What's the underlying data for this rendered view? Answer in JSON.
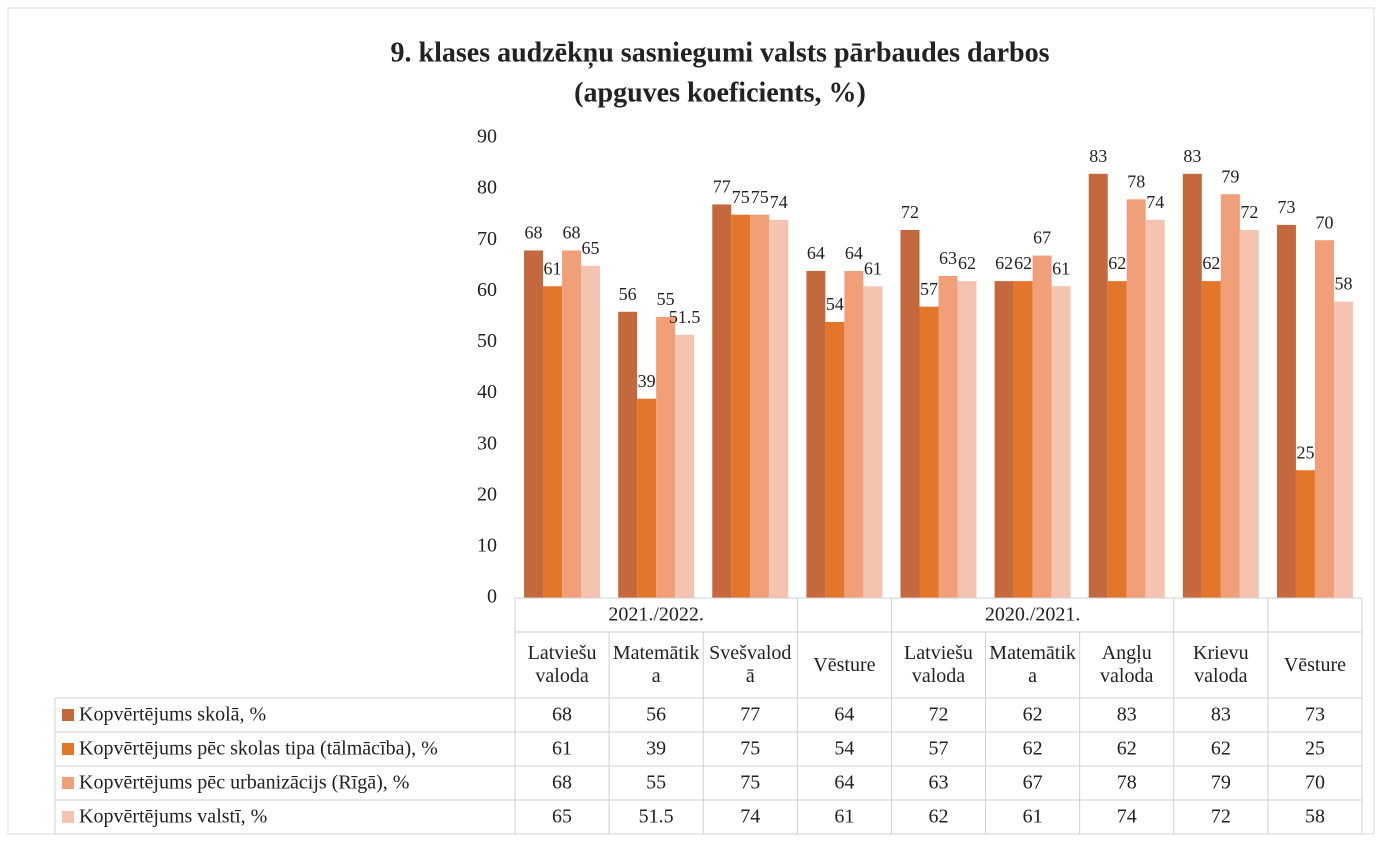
{
  "chart_data": {
    "type": "bar",
    "title": "9. klases audzēkņu sasniegumi valsts pārbaudes darbos",
    "subtitle": "(apguves koeficients, %)",
    "categories": [
      "Latviešu valoda",
      "Matemātika",
      "Svešvalodā",
      "Vēsture",
      "Latviešu valoda",
      "Matemātika",
      "Angļu valoda",
      "Krievu valoda",
      "Vēsture"
    ],
    "category_groups": [
      "2021./2022.",
      "2021./2022.",
      "2021./2022.",
      null,
      "2020./2021.",
      "2020./2021.",
      "2020./2021.",
      null,
      null
    ],
    "series": [
      {
        "name": "Kopvērtējums skolā, %",
        "color": "#c4693e",
        "values": [
          68,
          56,
          77,
          64,
          72,
          62,
          83,
          83,
          73
        ]
      },
      {
        "name": "Kopvērtējums pēc skolas tipa (tālmācība), %",
        "color": "#e2772c",
        "values": [
          61,
          39,
          75,
          54,
          57,
          62,
          62,
          62,
          25
        ]
      },
      {
        "name": "Kopvērtējums pēc urbanizācijs (Rīgā), %",
        "color": "#f19f78",
        "values": [
          68,
          55,
          75,
          64,
          63,
          67,
          78,
          79,
          70
        ]
      },
      {
        "name": "Kopvērtējums valstī, %",
        "color": "#f5c4b1",
        "values": [
          65,
          51.5,
          74,
          61,
          62,
          61,
          74,
          72,
          58
        ]
      }
    ],
    "ylim": [
      0,
      90
    ],
    "yticks": [
      0,
      10,
      20,
      30,
      40,
      50,
      60,
      70,
      80,
      90
    ],
    "grid": false
  }
}
